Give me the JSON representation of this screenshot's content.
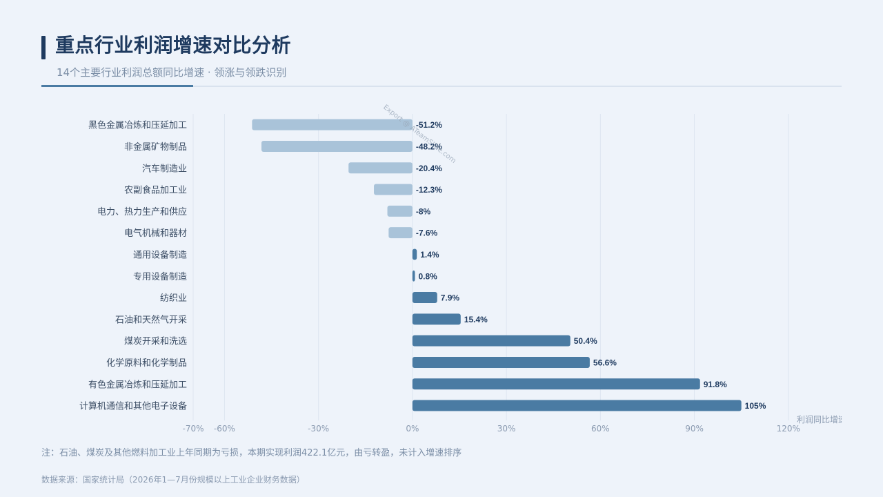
{
  "header": {
    "title": "重点行业利润增速对比分析",
    "subtitle": "14个主要行业利润总额同比增速 · 领涨与领跌识别"
  },
  "watermark": "Export @ ATeamSlide.com",
  "footer": {
    "note": "注：石油、煤炭及其他燃料加工业上年同期为亏损，本期实现利润422.1亿元，由亏转盈，未计入增速排序",
    "source": "数据来源：国家统计局（2026年1—7月份规模以上工业企业财务数据）"
  },
  "colors": {
    "positive": "#4a7ba3",
    "negative": "#a9c3d9",
    "grid": "#dde5f0",
    "label": "#3d4f66",
    "value": "#1e3a5f",
    "tick": "#8a9ab0"
  },
  "chart_data": {
    "type": "bar",
    "orientation": "horizontal",
    "categories": [
      "黑色金属冶炼和压延加工",
      "非金属矿物制品",
      "汽车制造业",
      "农副食品加工业",
      "电力、热力生产和供应",
      "电气机械和器材",
      "通用设备制造",
      "专用设备制造",
      "纺织业",
      "石油和天然气开采",
      "煤炭开采和洗选",
      "化学原料和化学制品",
      "有色金属冶炼和压延加工",
      "计算机通信和其他电子设备"
    ],
    "values": [
      -51.2,
      -48.2,
      -20.4,
      -12.3,
      -8,
      -7.6,
      1.4,
      0.8,
      7.9,
      15.4,
      50.4,
      56.6,
      91.8,
      105
    ],
    "value_labels": [
      "-51.2%",
      "-48.2%",
      "-20.4%",
      "-12.3%",
      "-8%",
      "-7.6%",
      "1.4%",
      "0.8%",
      "7.9%",
      "15.4%",
      "50.4%",
      "56.6%",
      "91.8%",
      "105%"
    ],
    "xlim": [
      -70,
      137
    ],
    "xticks": [
      -70,
      -60,
      -30,
      0,
      30,
      60,
      90,
      120
    ],
    "xtick_labels": [
      "-70%",
      "-60%",
      "-30%",
      "0%",
      "30%",
      "60%",
      "90%",
      "120%"
    ],
    "xlabel": "利润同比增速",
    "grid": true
  }
}
